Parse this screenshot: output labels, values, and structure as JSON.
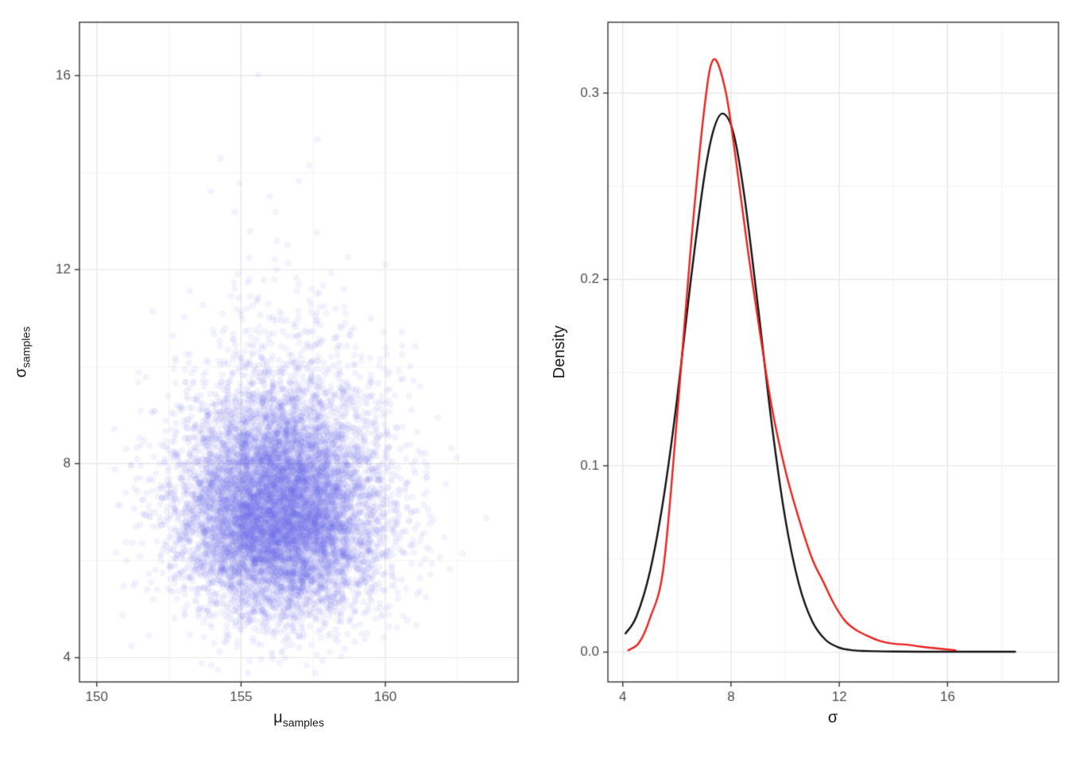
{
  "figure": {
    "background": "#ffffff",
    "description": "Two-panel statistical figure: scatter of posterior samples (mu vs sigma) and density curves of sigma"
  },
  "theme": {
    "panel_border": "#333333",
    "grid_major": "#e4e4e4",
    "grid_minor": "#f3f3f3",
    "tick_color": "#333333",
    "tick_label_color": "#4d4d4d",
    "axis_title_color": "#1a1a1a"
  },
  "chart_data": [
    {
      "type": "scatter",
      "name": "posterior-samples-scatter",
      "xlabel_main": "μ",
      "xlabel_sub": "samples",
      "ylabel_main": "σ",
      "ylabel_sub": "samples",
      "x_domain": [
        149.4,
        164.6
      ],
      "y_domain": [
        3.5,
        17.1
      ],
      "x_ticks": [
        150,
        155,
        160
      ],
      "x_tick_labels": [
        "150",
        "155",
        "160"
      ],
      "x_minor_ticks": [
        152.5,
        157.5,
        162.5
      ],
      "y_ticks": [
        4,
        8,
        12,
        16
      ],
      "y_tick_labels": [
        "4",
        "8",
        "12",
        "16"
      ],
      "y_minor_ticks": [
        6,
        10,
        14
      ],
      "points_summary": {
        "n_points": 10000,
        "x_center": 156.4,
        "x_sd": 1.75,
        "x_observed_range": [
          149.9,
          163.6
        ],
        "y_center": 7.3,
        "y_shape": "right-skewed",
        "y_observed_range": [
          4.2,
          16.5
        ]
      },
      "point_style": {
        "color": "#6a63e8",
        "alpha": 0.08,
        "radius": 4.2
      },
      "generator": {
        "seed": 20240601,
        "n": 10000,
        "x_mean": 156.4,
        "x_sd": 1.75,
        "y_base": 7.1,
        "y_log_sd": 0.17,
        "y_log_sd_tail": 0.3,
        "tail_frac": 0.04
      },
      "grid": true,
      "legend": "none"
    },
    {
      "type": "line",
      "name": "sigma-density",
      "xlabel": "σ",
      "ylabel": "Density",
      "x_domain": [
        3.45,
        20.1
      ],
      "y_domain": [
        -0.016,
        0.338
      ],
      "x_ticks": [
        4,
        8,
        12,
        16
      ],
      "x_tick_labels": [
        "4",
        "8",
        "12",
        "16"
      ],
      "x_minor_ticks": [
        6,
        10,
        14,
        18
      ],
      "y_ticks": [
        0,
        0.1,
        0.2,
        0.3
      ],
      "y_tick_labels": [
        "0.0",
        "0.1",
        "0.2",
        "0.3"
      ],
      "y_minor_ticks": [
        0.05,
        0.15,
        0.25
      ],
      "grid": true,
      "legend": "none",
      "series": [
        {
          "name": "black-density",
          "color": "#111111",
          "width": 2.4,
          "peak": {
            "x": 7.7,
            "y": 0.289
          },
          "x": [
            4.1,
            4.5,
            5.0,
            5.5,
            6.0,
            6.5,
            7.0,
            7.35,
            7.7,
            8.1,
            8.5,
            9.0,
            9.5,
            10.0,
            10.5,
            11.0,
            11.5,
            12.0,
            12.5,
            13.0,
            14.0,
            15.0,
            16.0,
            17.0,
            18.5
          ],
          "y": [
            0.01,
            0.019,
            0.043,
            0.082,
            0.135,
            0.198,
            0.254,
            0.28,
            0.289,
            0.278,
            0.244,
            0.185,
            0.123,
            0.072,
            0.037,
            0.0165,
            0.0065,
            0.0024,
            0.001,
            0.0006,
            0.0003,
            0.0002,
            0.0002,
            0.0002,
            0.0002
          ]
        },
        {
          "name": "red-density",
          "color": "#e8231f",
          "width": 2.4,
          "peak": {
            "x": 7.35,
            "y": 0.318
          },
          "x": [
            4.2,
            4.6,
            5.0,
            5.5,
            6.0,
            6.5,
            7.0,
            7.35,
            7.8,
            8.2,
            8.6,
            9.0,
            9.5,
            10.0,
            10.5,
            11.0,
            11.4,
            11.8,
            12.2,
            12.6,
            13.0,
            13.5,
            14.0,
            14.5,
            15.0,
            15.6,
            16.3
          ],
          "y": [
            0.001,
            0.005,
            0.018,
            0.045,
            0.125,
            0.215,
            0.29,
            0.318,
            0.301,
            0.262,
            0.218,
            0.178,
            0.132,
            0.098,
            0.072,
            0.05,
            0.038,
            0.026,
            0.017,
            0.012,
            0.009,
            0.006,
            0.0045,
            0.004,
            0.003,
            0.002,
            0.001
          ]
        }
      ]
    }
  ]
}
